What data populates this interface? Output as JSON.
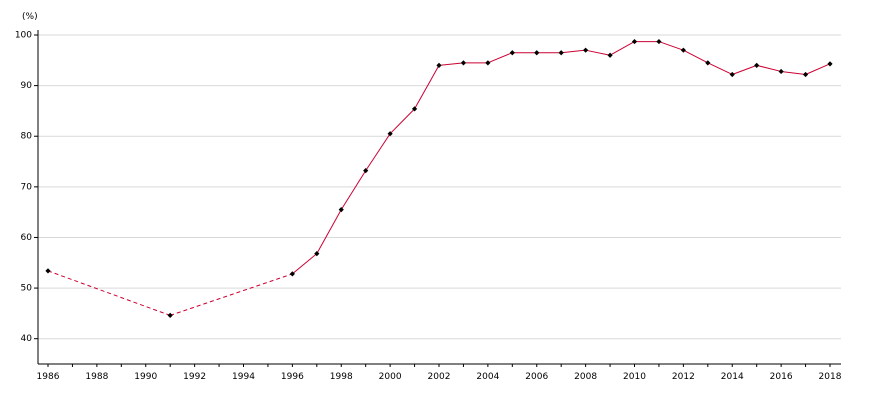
{
  "chart_data": {
    "type": "line",
    "unit": "(%)",
    "title": "",
    "xlabel": "",
    "ylabel": "",
    "xlim": [
      1986,
      2018
    ],
    "ylim": [
      35,
      100
    ],
    "yticks": [
      40,
      50,
      60,
      70,
      80,
      90,
      100
    ],
    "xticks": [
      1986,
      1988,
      1990,
      1992,
      1994,
      1996,
      1998,
      2000,
      2002,
      2004,
      2006,
      2008,
      2010,
      2012,
      2014,
      2016,
      2018
    ],
    "grid": "horizontal",
    "line_color": "#cc0033",
    "marker_color": "#000000",
    "marker": "diamond",
    "dashed_segments": [
      [
        1986,
        1991
      ],
      [
        1991,
        1996
      ]
    ],
    "series": [
      {
        "x": [
          1986,
          1991,
          1996,
          1997,
          1998,
          1999,
          2000,
          2001,
          2002,
          2003,
          2004,
          2005,
          2006,
          2007,
          2008,
          2009,
          2010,
          2011,
          2012,
          2013,
          2014,
          2015,
          2016,
          2017,
          2018
        ],
        "values": [
          53.4,
          44.6,
          52.8,
          56.8,
          65.5,
          73.2,
          80.5,
          85.4,
          94.0,
          94.5,
          94.5,
          96.5,
          96.5,
          96.5,
          97.0,
          96.0,
          98.7,
          98.7,
          97.0,
          94.5,
          92.2,
          94.0,
          92.8,
          92.2,
          94.3
        ]
      }
    ]
  }
}
